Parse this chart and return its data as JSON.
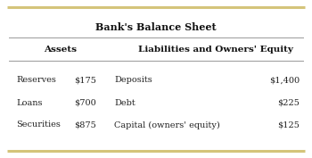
{
  "title": "Bank's Balance Sheet",
  "col1_header": "Assets",
  "col2_header": "Liabilities and Owners' Equity",
  "assets": [
    {
      "label": "Reserves",
      "value": "$175"
    },
    {
      "label": "Loans",
      "value": "$700"
    },
    {
      "label": "Securities",
      "value": "$875"
    }
  ],
  "liabilities": [
    {
      "label": "Deposits",
      "value": "$1,400"
    },
    {
      "label": "Debt",
      "value": "$225"
    },
    {
      "label": "Capital (owners' equity)",
      "value": "$125"
    }
  ],
  "border_color": "#d4c47a",
  "bg_color": "#ffffff",
  "text_color": "#222222",
  "header_color": "#111111",
  "line_color": "#999999",
  "title_fontsize": 8.0,
  "header_fontsize": 7.5,
  "data_fontsize": 7.0,
  "border_lw": 2.2,
  "divider_lw": 0.7
}
